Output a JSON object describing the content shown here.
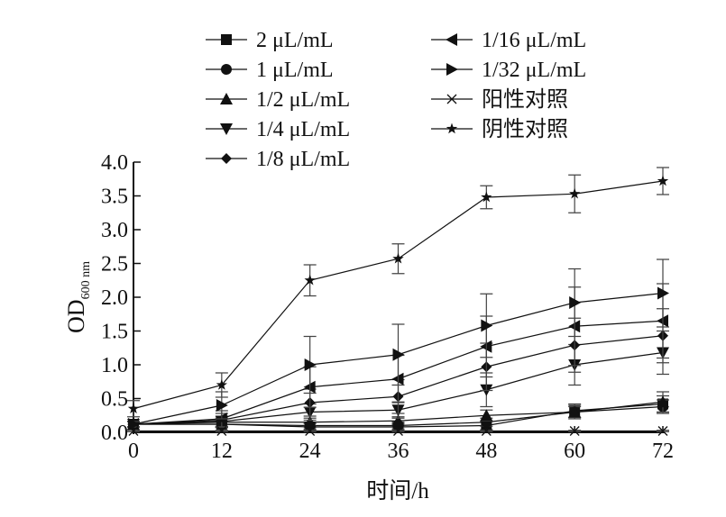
{
  "chart_data": {
    "type": "line",
    "title": "",
    "xlabel": "时间/h",
    "ylabel": "OD",
    "ylabel_sub": "600 nm",
    "x": [
      0,
      12,
      24,
      36,
      48,
      60,
      72
    ],
    "xticks": [
      "0",
      "12",
      "24",
      "36",
      "48",
      "60",
      "72"
    ],
    "yticks": [
      "0.0",
      "0.5",
      "1.0",
      "1.5",
      "2.0",
      "2.5",
      "3.0",
      "3.5",
      "4.0"
    ],
    "xlim": [
      0,
      72
    ],
    "ylim": [
      0,
      4
    ],
    "grid": false,
    "legend_position": "top",
    "series": [
      {
        "name": "2 μL/mL",
        "marker": "square",
        "values": [
          0.12,
          0.12,
          0.08,
          0.08,
          0.1,
          0.32,
          0.42
        ],
        "errors": [
          0.04,
          0.05,
          0.05,
          0.05,
          0.06,
          0.1,
          0.12
        ]
      },
      {
        "name": "1 μL/mL",
        "marker": "circle",
        "values": [
          0.12,
          0.12,
          0.1,
          0.1,
          0.15,
          0.3,
          0.38
        ],
        "errors": [
          0.04,
          0.05,
          0.05,
          0.05,
          0.06,
          0.08,
          0.1
        ]
      },
      {
        "name": "1/2 μL/mL",
        "marker": "triangle-up",
        "values": [
          0.12,
          0.15,
          0.15,
          0.17,
          0.25,
          0.3,
          0.45
        ],
        "errors": [
          0.04,
          0.06,
          0.06,
          0.06,
          0.08,
          0.1,
          0.15
        ]
      },
      {
        "name": "1/4 μL/mL",
        "marker": "triangle-down",
        "values": [
          0.12,
          0.16,
          0.3,
          0.33,
          0.63,
          1.0,
          1.18
        ],
        "errors": [
          0.04,
          0.08,
          0.12,
          0.12,
          0.25,
          0.3,
          0.32
        ]
      },
      {
        "name": "1/8 μL/mL",
        "marker": "diamond",
        "values": [
          0.12,
          0.18,
          0.44,
          0.53,
          0.97,
          1.29,
          1.43
        ],
        "errors": [
          0.04,
          0.1,
          0.2,
          0.25,
          0.35,
          0.4,
          0.4
        ]
      },
      {
        "name": "1/16 μL/mL",
        "marker": "triangle-left",
        "values": [
          0.12,
          0.2,
          0.67,
          0.79,
          1.27,
          1.57,
          1.65
        ],
        "errors": [
          0.04,
          0.12,
          0.3,
          0.35,
          0.45,
          0.58,
          0.55
        ]
      },
      {
        "name": "1/32 μL/mL",
        "marker": "triangle-right",
        "values": [
          0.12,
          0.4,
          1.0,
          1.15,
          1.58,
          1.92,
          2.06
        ],
        "errors": [
          0.04,
          0.2,
          0.42,
          0.45,
          0.47,
          0.5,
          0.5
        ]
      },
      {
        "name": "阳性对照",
        "marker": "x",
        "values": [
          0.02,
          0.02,
          0.02,
          0.02,
          0.02,
          0.02,
          0.02
        ],
        "errors": [
          0.01,
          0.01,
          0.01,
          0.01,
          0.01,
          0.01,
          0.01
        ]
      },
      {
        "name": "阴性对照",
        "marker": "star",
        "values": [
          0.35,
          0.7,
          2.25,
          2.57,
          3.48,
          3.53,
          3.72
        ],
        "errors": [
          0.12,
          0.18,
          0.23,
          0.22,
          0.17,
          0.28,
          0.2
        ]
      }
    ]
  }
}
